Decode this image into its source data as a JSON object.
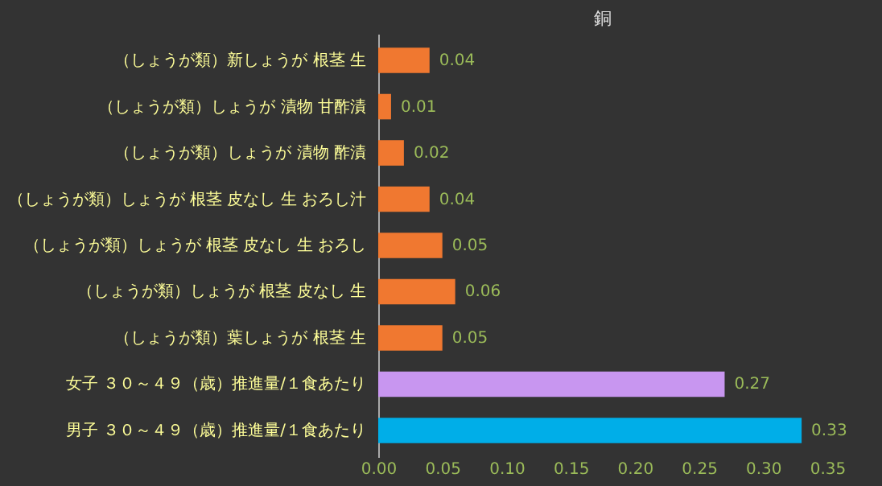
{
  "chart_data": {
    "type": "bar",
    "orientation": "horizontal",
    "title": "銅",
    "categories": [
      "（しょうが類）新しょうが 根茎 生",
      "（しょうが類）しょうが 漬物 甘酢漬",
      "（しょうが類）しょうが 漬物 酢漬",
      "（しょうが類）しょうが 根茎 皮なし 生 おろし汁",
      "（しょうが類）しょうが 根茎 皮なし 生 おろし",
      "（しょうが類）しょうが 根茎 皮なし 生",
      "（しょうが類）葉しょうが 根茎 生",
      "女子 ３０～４９（歳）推進量/１食あたり",
      "男子 ３０～４９（歳）推進量/１食あたり"
    ],
    "values": [
      0.04,
      0.01,
      0.02,
      0.04,
      0.05,
      0.06,
      0.05,
      0.27,
      0.33
    ],
    "colors": [
      "#f07830",
      "#f07830",
      "#f07830",
      "#f07830",
      "#f07830",
      "#f07830",
      "#f07830",
      "#c896f0",
      "#00aee8"
    ],
    "data_labels": true,
    "xlim": [
      0,
      0.35
    ],
    "xticks": [
      {
        "value": 0,
        "label": "0.00"
      },
      {
        "value": 0.05,
        "label": "0.05"
      },
      {
        "value": 0.1,
        "label": "0.10"
      },
      {
        "value": 0.15,
        "label": "0.15"
      },
      {
        "value": 0.2,
        "label": "0.20"
      },
      {
        "value": 0.25,
        "label": "0.25"
      },
      {
        "value": 0.3,
        "label": "0.30"
      },
      {
        "value": 0.35,
        "label": "0.35"
      }
    ],
    "grid": false
  }
}
